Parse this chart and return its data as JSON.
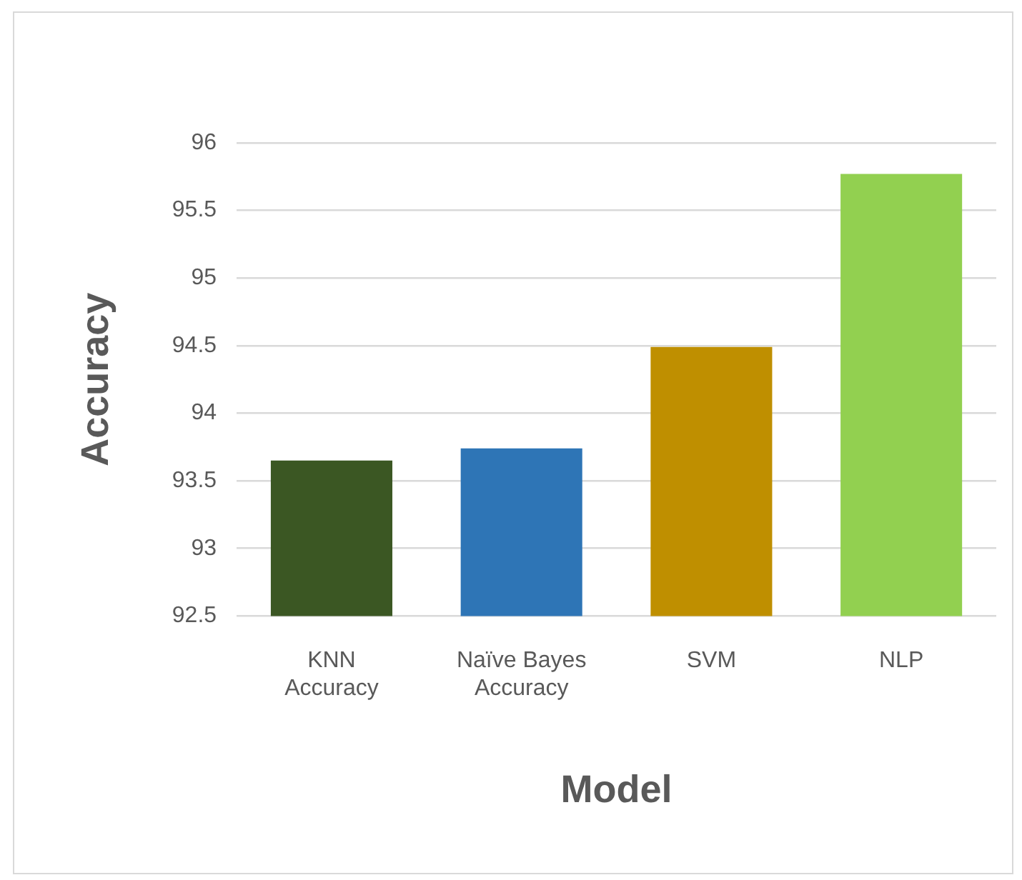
{
  "chart_data": {
    "type": "bar",
    "xlabel": "Model",
    "ylabel": "Accuracy",
    "categories": [
      "KNN Accuracy",
      "Naïve Bayes Accuracy",
      "SVM",
      "NLP"
    ],
    "values": [
      93.65,
      93.74,
      94.49,
      95.77
    ],
    "colors": [
      "#3b5723",
      "#2e75b6",
      "#bf8f00",
      "#92d050"
    ],
    "ylim": [
      92.5,
      96
    ],
    "yticks": [
      92.5,
      93,
      93.5,
      94,
      94.5,
      95,
      95.5,
      96
    ],
    "grid": "y",
    "legend": false
  }
}
